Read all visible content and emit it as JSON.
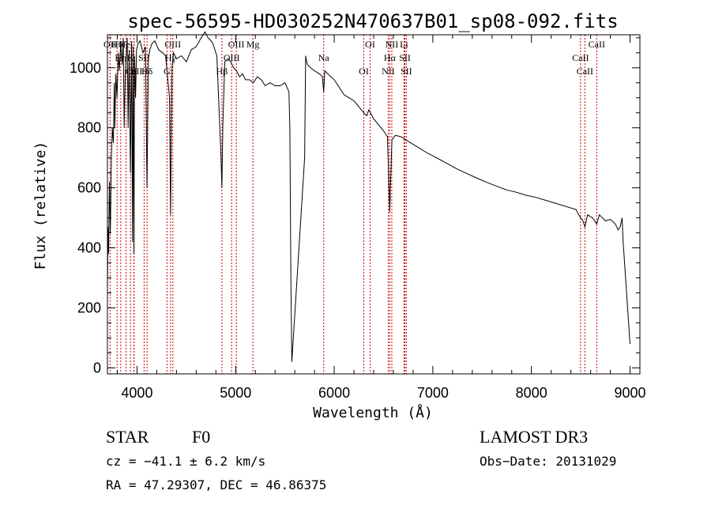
{
  "chart_data": {
    "type": "line",
    "title": "spec-56595-HD030252N470637B01_sp08-092.fits",
    "xlabel": "Wavelength (Å)",
    "ylabel": "Flux (relative)",
    "xlim": [
      3700,
      9100
    ],
    "ylim": [
      -20,
      1110
    ],
    "x_ticks": [
      4000,
      5000,
      6000,
      7000,
      8000,
      9000
    ],
    "x_tick_labels": [
      "4000",
      "5000",
      "6000",
      "7000",
      "8000",
      "9000"
    ],
    "y_ticks": [
      0,
      200,
      400,
      600,
      800,
      1000
    ],
    "y_tick_labels": [
      "0",
      "200",
      "400",
      "600",
      "800",
      "1000"
    ],
    "spectrum": {
      "x": [
        3700,
        3705,
        3712,
        3720,
        3730,
        3740,
        3750,
        3760,
        3770,
        3775,
        3785,
        3797,
        3810,
        3820,
        3835,
        3850,
        3860,
        3870,
        3880,
        3889,
        3900,
        3910,
        3920,
        3933,
        3945,
        3955,
        3960,
        3968,
        3975,
        3985,
        3995,
        4010,
        4030,
        4060,
        4085,
        4101,
        4115,
        4130,
        4150,
        4180,
        4220,
        4260,
        4290,
        4330,
        4340,
        4355,
        4370,
        4400,
        4450,
        4500,
        4550,
        4600,
        4650,
        4690,
        4720,
        4750,
        4770,
        4790,
        4810,
        4830,
        4850,
        4861,
        4870,
        4890,
        4920,
        4950,
        4980,
        5010,
        5040,
        5070,
        5100,
        5140,
        5180,
        5220,
        5260,
        5300,
        5350,
        5400,
        5450,
        5500,
        5540,
        5550,
        5560,
        5570,
        5700,
        5710,
        5720,
        5730,
        5760,
        5800,
        5850,
        5880,
        5893,
        5905,
        5950,
        6000,
        6050,
        6100,
        6150,
        6200,
        6250,
        6300,
        6330,
        6350,
        6400,
        6450,
        6500,
        6540,
        6563,
        6585,
        6620,
        6680,
        6750,
        6850,
        6950,
        7050,
        7150,
        7250,
        7350,
        7450,
        7550,
        7650,
        7750,
        7850,
        7950,
        8050,
        8150,
        8250,
        8350,
        8450,
        8498,
        8520,
        8542,
        8570,
        8620,
        8662,
        8690,
        8750,
        8800,
        8850,
        8880,
        8900,
        8920,
        8930,
        9000
      ],
      "y": [
        250,
        470,
        380,
        620,
        450,
        700,
        800,
        750,
        950,
        800,
        980,
        900,
        1050,
        990,
        1080,
        1010,
        1100,
        800,
        980,
        1030,
        1100,
        800,
        1060,
        650,
        1080,
        420,
        1070,
        380,
        1040,
        900,
        1060,
        1080,
        1090,
        1050,
        1070,
        600,
        1030,
        1060,
        1080,
        1090,
        1060,
        1050,
        1040,
        900,
        510,
        1000,
        1050,
        1030,
        1040,
        1020,
        1060,
        1070,
        1100,
        1120,
        1100,
        1090,
        1080,
        1060,
        1040,
        880,
        720,
        600,
        800,
        1020,
        1030,
        1020,
        1000,
        990,
        970,
        980,
        960,
        960,
        950,
        970,
        960,
        940,
        950,
        940,
        940,
        950,
        920,
        800,
        300,
        20,
        700,
        1040,
        1020,
        1010,
        1000,
        990,
        980,
        970,
        920,
        990,
        975,
        960,
        935,
        910,
        900,
        890,
        870,
        850,
        840,
        860,
        830,
        810,
        790,
        770,
        520,
        760,
        775,
        770,
        755,
        735,
        715,
        698,
        680,
        662,
        647,
        632,
        618,
        605,
        593,
        585,
        575,
        568,
        558,
        548,
        538,
        528,
        500,
        492,
        470,
        510,
        500,
        480,
        510,
        490,
        495,
        480,
        460,
        470,
        500,
        420,
        80
      ]
    },
    "lines": [
      {
        "name": "Hθ",
        "x": 3798
      },
      {
        "name": "K",
        "x": 3934
      },
      {
        "name": "H",
        "x": 3969
      },
      {
        "name": "HeI",
        "x": 3889
      },
      {
        "name": "SII",
        "x": 4072
      },
      {
        "name": "Hδ",
        "x": 4102
      },
      {
        "name": "OII",
        "x": 3727
      },
      {
        "name": "Hη",
        "x": 3835
      },
      {
        "name": "CaII",
        "x": 3970
      },
      {
        "name": "OIII",
        "x": 4363
      },
      {
        "name": "Hγ",
        "x": 4340
      },
      {
        "name": "G",
        "x": 4304
      },
      {
        "name": "OIII",
        "x": 5007
      },
      {
        "name": "OIII",
        "x": 4959
      },
      {
        "name": "Hβ",
        "x": 4861
      },
      {
        "name": "Mg",
        "x": 5175
      },
      {
        "name": "Na",
        "x": 5893
      },
      {
        "name": "OI",
        "x": 6300
      },
      {
        "name": "OI",
        "x": 6364
      },
      {
        "name": "Hα",
        "x": 6563
      },
      {
        "name": "NII",
        "x": 6548
      },
      {
        "name": "NII",
        "x": 6584
      },
      {
        "name": "SII",
        "x": 6717
      },
      {
        "name": "SII",
        "x": 6731
      },
      {
        "name": "Li",
        "x": 6708
      },
      {
        "name": "CaII",
        "x": 8498
      },
      {
        "name": "CaII",
        "x": 8542
      },
      {
        "name": "CaII",
        "x": 8662
      }
    ],
    "line_color": "#cc0000",
    "grid": false
  },
  "info": {
    "object_class": "STAR",
    "subclass": "F0",
    "survey": "LAMOST DR3",
    "cz": "cz = −41.1 ± 6.2 km/s",
    "obs_date": "Obs−Date: 20131029",
    "radec": "RA =  47.29307, DEC =  46.86375"
  }
}
